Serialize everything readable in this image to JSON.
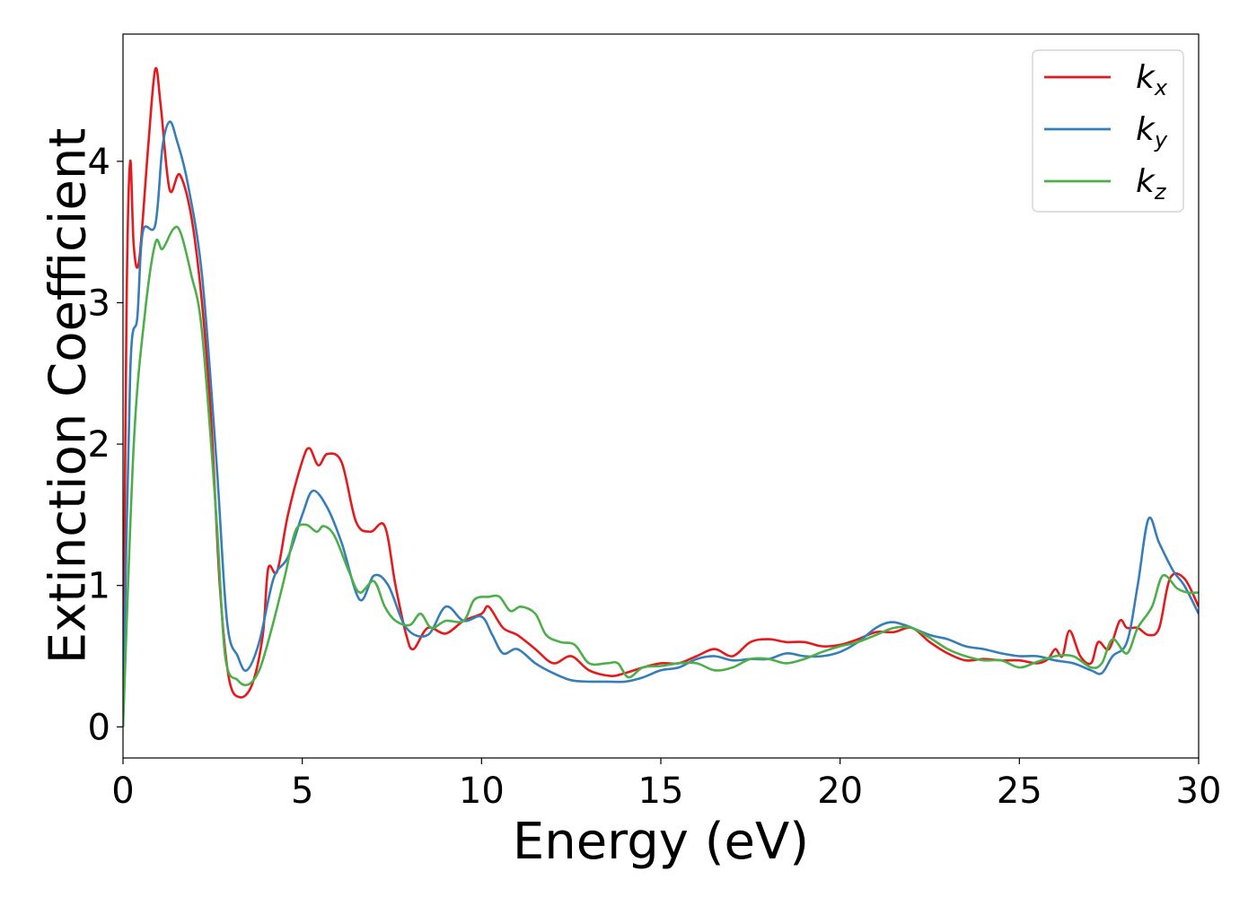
{
  "chart_data": {
    "type": "line",
    "title": "",
    "xlabel": "Energy (eV)",
    "ylabel": "Extinction Coefficient",
    "xlim": [
      0,
      30
    ],
    "ylim": [
      -0.22,
      4.9
    ],
    "xticks": [
      0,
      5,
      10,
      15,
      20,
      25,
      30
    ],
    "yticks": [
      0,
      1,
      2,
      3,
      4
    ],
    "grid": false,
    "legend_position": "top-right",
    "series": [
      {
        "name": "k_x",
        "label_main": "k",
        "label_sub": "x",
        "color": "#e41a1c",
        "points": [
          [
            0,
            0
          ],
          [
            0.1,
            3.0
          ],
          [
            0.2,
            4.0
          ],
          [
            0.3,
            3.4
          ],
          [
            0.45,
            3.3
          ],
          [
            0.7,
            4.1
          ],
          [
            0.9,
            4.65
          ],
          [
            1.05,
            4.4
          ],
          [
            1.3,
            3.8
          ],
          [
            1.6,
            3.9
          ],
          [
            2.0,
            3.45
          ],
          [
            2.4,
            2.4
          ],
          [
            2.7,
            1.0
          ],
          [
            2.95,
            0.35
          ],
          [
            3.25,
            0.21
          ],
          [
            3.6,
            0.3
          ],
          [
            3.9,
            0.65
          ],
          [
            4.05,
            1.12
          ],
          [
            4.3,
            1.1
          ],
          [
            4.6,
            1.5
          ],
          [
            5.0,
            1.88
          ],
          [
            5.2,
            1.97
          ],
          [
            5.45,
            1.85
          ],
          [
            5.7,
            1.93
          ],
          [
            6.1,
            1.87
          ],
          [
            6.5,
            1.45
          ],
          [
            6.9,
            1.38
          ],
          [
            7.3,
            1.42
          ],
          [
            7.6,
            1.0
          ],
          [
            7.9,
            0.65
          ],
          [
            8.1,
            0.55
          ],
          [
            8.5,
            0.7
          ],
          [
            9.0,
            0.66
          ],
          [
            9.5,
            0.75
          ],
          [
            10.0,
            0.8
          ],
          [
            10.2,
            0.85
          ],
          [
            10.6,
            0.7
          ],
          [
            11.0,
            0.65
          ],
          [
            11.5,
            0.55
          ],
          [
            12.0,
            0.45
          ],
          [
            12.5,
            0.5
          ],
          [
            13.0,
            0.4
          ],
          [
            13.6,
            0.36
          ],
          [
            14.0,
            0.38
          ],
          [
            14.5,
            0.42
          ],
          [
            15.0,
            0.45
          ],
          [
            15.5,
            0.45
          ],
          [
            16.0,
            0.5
          ],
          [
            16.5,
            0.55
          ],
          [
            17.0,
            0.5
          ],
          [
            17.5,
            0.6
          ],
          [
            18.0,
            0.62
          ],
          [
            18.5,
            0.6
          ],
          [
            19.0,
            0.6
          ],
          [
            19.5,
            0.57
          ],
          [
            20.0,
            0.58
          ],
          [
            20.5,
            0.62
          ],
          [
            21.0,
            0.67
          ],
          [
            21.5,
            0.67
          ],
          [
            22.0,
            0.7
          ],
          [
            22.5,
            0.6
          ],
          [
            23.0,
            0.52
          ],
          [
            23.5,
            0.47
          ],
          [
            24.0,
            0.48
          ],
          [
            24.5,
            0.47
          ],
          [
            25.0,
            0.47
          ],
          [
            25.5,
            0.45
          ],
          [
            25.8,
            0.48
          ],
          [
            26.0,
            0.55
          ],
          [
            26.2,
            0.5
          ],
          [
            26.4,
            0.68
          ],
          [
            26.7,
            0.5
          ],
          [
            27.0,
            0.45
          ],
          [
            27.2,
            0.6
          ],
          [
            27.5,
            0.55
          ],
          [
            27.8,
            0.75
          ],
          [
            28.0,
            0.7
          ],
          [
            28.3,
            0.7
          ],
          [
            28.6,
            0.65
          ],
          [
            28.9,
            0.7
          ],
          [
            29.2,
            1.05
          ],
          [
            29.6,
            1.05
          ],
          [
            30.0,
            0.85
          ]
        ]
      },
      {
        "name": "k_y",
        "label_main": "k",
        "label_sub": "y",
        "color": "#377eb8",
        "points": [
          [
            0,
            0
          ],
          [
            0.2,
            2.5
          ],
          [
            0.4,
            2.9
          ],
          [
            0.55,
            3.5
          ],
          [
            0.9,
            3.55
          ],
          [
            1.1,
            4.1
          ],
          [
            1.3,
            4.28
          ],
          [
            1.5,
            4.15
          ],
          [
            1.8,
            3.85
          ],
          [
            2.2,
            3.2
          ],
          [
            2.6,
            1.9
          ],
          [
            2.9,
            0.75
          ],
          [
            3.2,
            0.5
          ],
          [
            3.45,
            0.4
          ],
          [
            3.8,
            0.6
          ],
          [
            4.2,
            1.05
          ],
          [
            4.6,
            1.2
          ],
          [
            5.0,
            1.5
          ],
          [
            5.3,
            1.67
          ],
          [
            5.7,
            1.55
          ],
          [
            6.1,
            1.3
          ],
          [
            6.6,
            0.9
          ],
          [
            7.0,
            1.07
          ],
          [
            7.4,
            1.0
          ],
          [
            7.9,
            0.7
          ],
          [
            8.5,
            0.65
          ],
          [
            9.0,
            0.85
          ],
          [
            9.5,
            0.75
          ],
          [
            10.0,
            0.78
          ],
          [
            10.3,
            0.65
          ],
          [
            10.6,
            0.52
          ],
          [
            11.0,
            0.55
          ],
          [
            11.5,
            0.45
          ],
          [
            12.0,
            0.38
          ],
          [
            12.5,
            0.33
          ],
          [
            13.0,
            0.32
          ],
          [
            13.5,
            0.32
          ],
          [
            14.0,
            0.32
          ],
          [
            14.5,
            0.35
          ],
          [
            15.0,
            0.4
          ],
          [
            15.5,
            0.42
          ],
          [
            16.0,
            0.48
          ],
          [
            16.5,
            0.5
          ],
          [
            17.0,
            0.47
          ],
          [
            17.5,
            0.48
          ],
          [
            18.0,
            0.48
          ],
          [
            18.5,
            0.52
          ],
          [
            19.0,
            0.5
          ],
          [
            19.5,
            0.5
          ],
          [
            20.0,
            0.53
          ],
          [
            20.5,
            0.6
          ],
          [
            21.0,
            0.7
          ],
          [
            21.4,
            0.74
          ],
          [
            21.8,
            0.72
          ],
          [
            22.5,
            0.65
          ],
          [
            23.0,
            0.62
          ],
          [
            23.5,
            0.57
          ],
          [
            24.0,
            0.55
          ],
          [
            24.5,
            0.52
          ],
          [
            25.0,
            0.5
          ],
          [
            25.5,
            0.5
          ],
          [
            26.0,
            0.47
          ],
          [
            26.5,
            0.45
          ],
          [
            27.0,
            0.4
          ],
          [
            27.3,
            0.38
          ],
          [
            27.6,
            0.5
          ],
          [
            28.0,
            0.6
          ],
          [
            28.3,
            1.0
          ],
          [
            28.6,
            1.47
          ],
          [
            28.9,
            1.3
          ],
          [
            29.3,
            1.1
          ],
          [
            29.6,
            1.0
          ],
          [
            30.0,
            0.8
          ]
        ]
      },
      {
        "name": "k_z",
        "label_main": "k",
        "label_sub": "z",
        "color": "#4daf4a",
        "points": [
          [
            0,
            0
          ],
          [
            0.3,
            2.0
          ],
          [
            0.6,
            2.9
          ],
          [
            0.9,
            3.42
          ],
          [
            1.1,
            3.38
          ],
          [
            1.4,
            3.52
          ],
          [
            1.6,
            3.5
          ],
          [
            1.9,
            3.2
          ],
          [
            2.2,
            2.8
          ],
          [
            2.6,
            1.5
          ],
          [
            2.85,
            0.5
          ],
          [
            3.2,
            0.33
          ],
          [
            3.5,
            0.3
          ],
          [
            3.8,
            0.4
          ],
          [
            4.1,
            0.65
          ],
          [
            4.5,
            1.05
          ],
          [
            4.8,
            1.38
          ],
          [
            5.1,
            1.43
          ],
          [
            5.4,
            1.38
          ],
          [
            5.6,
            1.42
          ],
          [
            5.9,
            1.35
          ],
          [
            6.3,
            1.1
          ],
          [
            6.6,
            0.95
          ],
          [
            7.0,
            1.03
          ],
          [
            7.3,
            0.85
          ],
          [
            7.6,
            0.75
          ],
          [
            8.0,
            0.72
          ],
          [
            8.3,
            0.8
          ],
          [
            8.6,
            0.7
          ],
          [
            9.0,
            0.75
          ],
          [
            9.5,
            0.75
          ],
          [
            9.8,
            0.9
          ],
          [
            10.2,
            0.92
          ],
          [
            10.5,
            0.92
          ],
          [
            10.8,
            0.82
          ],
          [
            11.1,
            0.85
          ],
          [
            11.5,
            0.8
          ],
          [
            11.8,
            0.65
          ],
          [
            12.2,
            0.6
          ],
          [
            12.6,
            0.58
          ],
          [
            13.0,
            0.45
          ],
          [
            13.5,
            0.45
          ],
          [
            13.8,
            0.45
          ],
          [
            14.1,
            0.35
          ],
          [
            14.5,
            0.42
          ],
          [
            15.0,
            0.43
          ],
          [
            15.5,
            0.45
          ],
          [
            16.0,
            0.45
          ],
          [
            16.5,
            0.4
          ],
          [
            17.0,
            0.42
          ],
          [
            17.5,
            0.48
          ],
          [
            18.0,
            0.48
          ],
          [
            18.5,
            0.45
          ],
          [
            19.0,
            0.48
          ],
          [
            19.5,
            0.53
          ],
          [
            20.0,
            0.57
          ],
          [
            20.5,
            0.6
          ],
          [
            21.0,
            0.65
          ],
          [
            21.5,
            0.7
          ],
          [
            22.0,
            0.7
          ],
          [
            22.5,
            0.63
          ],
          [
            23.0,
            0.55
          ],
          [
            23.5,
            0.5
          ],
          [
            24.0,
            0.47
          ],
          [
            24.5,
            0.47
          ],
          [
            25.0,
            0.42
          ],
          [
            25.5,
            0.46
          ],
          [
            26.0,
            0.5
          ],
          [
            26.5,
            0.5
          ],
          [
            27.0,
            0.42
          ],
          [
            27.3,
            0.45
          ],
          [
            27.6,
            0.62
          ],
          [
            28.0,
            0.52
          ],
          [
            28.3,
            0.7
          ],
          [
            28.7,
            0.85
          ],
          [
            29.0,
            1.07
          ],
          [
            29.4,
            0.98
          ],
          [
            29.7,
            0.95
          ],
          [
            30.0,
            0.95
          ]
        ]
      }
    ]
  }
}
